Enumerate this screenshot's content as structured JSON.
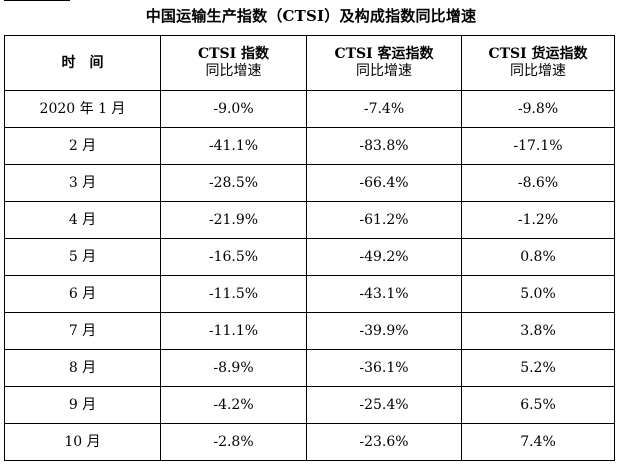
{
  "title": "中国运输生产指数（CTSI）及构成指数同比增速",
  "header": {
    "col0": "时　间",
    "col1_line1": "CTSI 指数",
    "col1_line2": "同比增速",
    "col2_line1": "CTSI 客运指数",
    "col2_line2": "同比增速",
    "col3_line1": "CTSI 货运指数",
    "col3_line2": "同比增速"
  },
  "rows": [
    {
      "period": "2020 年 1 月",
      "ctsi": "-9.0%",
      "passenger": "-7.4%",
      "freight": "-9.8%"
    },
    {
      "period": "2 月",
      "ctsi": "-41.1%",
      "passenger": "-83.8%",
      "freight": "-17.1%"
    },
    {
      "period": "3 月",
      "ctsi": "-28.5%",
      "passenger": "-66.4%",
      "freight": "-8.6%"
    },
    {
      "period": "4 月",
      "ctsi": "-21.9%",
      "passenger": "-61.2%",
      "freight": "-1.2%"
    },
    {
      "period": "5 月",
      "ctsi": "-16.5%",
      "passenger": "-49.2%",
      "freight": "0.8%"
    },
    {
      "period": "6 月",
      "ctsi": "-11.5%",
      "passenger": "-43.1%",
      "freight": "5.0%"
    },
    {
      "period": "7 月",
      "ctsi": "-11.1%",
      "passenger": "-39.9%",
      "freight": "3.8%"
    },
    {
      "period": "8 月",
      "ctsi": "-8.9%",
      "passenger": "-36.1%",
      "freight": "5.2%"
    },
    {
      "period": "9 月",
      "ctsi": "-4.2%",
      "passenger": "-25.4%",
      "freight": "6.5%"
    },
    {
      "period": "10 月",
      "ctsi": "-2.8%",
      "passenger": "-23.6%",
      "freight": "7.4%"
    }
  ]
}
